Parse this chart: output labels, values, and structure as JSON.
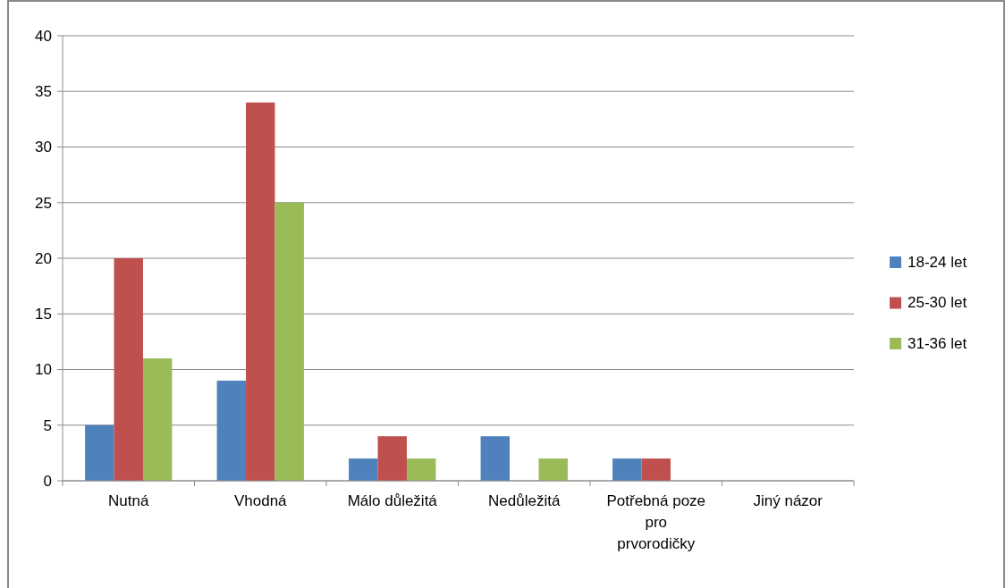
{
  "chart_data": {
    "type": "bar",
    "categories": [
      "Nutná",
      "Vhodná",
      "Málo důležitá",
      "Nedůležitá",
      "Potřebná poze pro prvorodičky",
      "Jiný názor"
    ],
    "series": [
      {
        "name": "18-24 let",
        "color": "#4f81bd",
        "values": [
          5,
          9,
          2,
          4,
          2,
          0
        ]
      },
      {
        "name": "25-30 let",
        "color": "#c0504d",
        "values": [
          20,
          34,
          4,
          0,
          2,
          0
        ]
      },
      {
        "name": "31-36 let",
        "color": "#9bbb59",
        "values": [
          11,
          25,
          2,
          2,
          0,
          0
        ]
      }
    ],
    "ylim": [
      0,
      40
    ],
    "yticks": [
      0,
      5,
      10,
      15,
      20,
      25,
      30,
      35,
      40
    ],
    "grid": "y",
    "legend": "right"
  }
}
